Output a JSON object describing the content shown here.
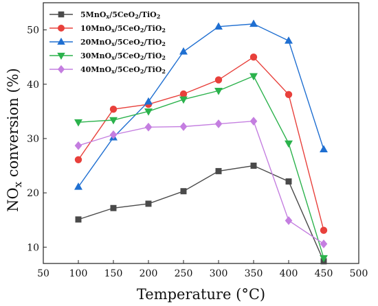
{
  "chart_data": {
    "type": "line",
    "xlabel": "Temperature (°C)",
    "ylabel": "NOx conversion (%)",
    "ylabel_main": "NO",
    "ylabel_sub": "x",
    "ylabel_rest": " conversion (%)",
    "xlim": [
      50,
      500
    ],
    "ylim": [
      7,
      55
    ],
    "x_ticks": [
      50,
      100,
      150,
      200,
      250,
      300,
      350,
      400,
      450,
      500
    ],
    "y_ticks": [
      10,
      20,
      30,
      40,
      50
    ],
    "grid": false,
    "legend_position": "top-left",
    "x": [
      100,
      150,
      200,
      250,
      300,
      350,
      400,
      450
    ],
    "series": [
      {
        "name": "5MnOx/5CeO2/TiO2",
        "name_parts": [
          [
            "5MnO",
            ""
          ],
          [
            "x",
            "sub"
          ],
          [
            "/5CeO",
            ""
          ],
          [
            "2",
            "sub"
          ],
          [
            "/TiO",
            ""
          ],
          [
            "2",
            "sub"
          ]
        ],
        "color": "#4a4a4a",
        "marker": "square",
        "values": [
          15.1,
          17.2,
          18.0,
          20.3,
          24.0,
          25.0,
          22.1,
          7.4
        ]
      },
      {
        "name": "10MnOx/5CeO2/TiO2",
        "name_parts": [
          [
            "10MnO",
            ""
          ],
          [
            "x",
            "sub"
          ],
          [
            "/5CeO",
            ""
          ],
          [
            "2",
            "sub"
          ],
          [
            "/TiO",
            ""
          ],
          [
            "2",
            "sub"
          ]
        ],
        "color": "#e8403b",
        "marker": "circle",
        "values": [
          26.1,
          35.4,
          36.3,
          38.2,
          40.8,
          45.0,
          38.1,
          13.1
        ]
      },
      {
        "name": "20MnOx/5CeO2/TiO2",
        "name_parts": [
          [
            "20MnO",
            ""
          ],
          [
            "x",
            "sub"
          ],
          [
            "/5CeO",
            ""
          ],
          [
            "2",
            "sub"
          ],
          [
            "/TiO",
            ""
          ],
          [
            "2",
            "sub"
          ]
        ],
        "color": "#1f6fd1",
        "marker": "triangle-up",
        "values": [
          21.1,
          30.2,
          36.8,
          46.0,
          50.6,
          51.1,
          48.0,
          28.0
        ]
      },
      {
        "name": "30MnOx/5CeO2/TiO2",
        "name_parts": [
          [
            "30MnO",
            ""
          ],
          [
            "x",
            "sub"
          ],
          [
            "/5CeO",
            ""
          ],
          [
            "2",
            "sub"
          ],
          [
            "/TiO",
            ""
          ],
          [
            "2",
            "sub"
          ]
        ],
        "color": "#2bb24c",
        "marker": "triangle-down",
        "values": [
          33.0,
          33.4,
          35.0,
          37.2,
          38.8,
          41.5,
          29.1,
          8.0
        ]
      },
      {
        "name": "40MnOx/5CeO2/TiO2",
        "name_parts": [
          [
            "40MnO",
            ""
          ],
          [
            "x",
            "sub"
          ],
          [
            "/5CeO",
            ""
          ],
          [
            "2",
            "sub"
          ],
          [
            "/TiO",
            ""
          ],
          [
            "2",
            "sub"
          ]
        ],
        "color": "#c47ee0",
        "marker": "diamond",
        "values": [
          28.7,
          30.7,
          32.1,
          32.2,
          32.7,
          33.2,
          14.9,
          10.6
        ]
      }
    ]
  }
}
